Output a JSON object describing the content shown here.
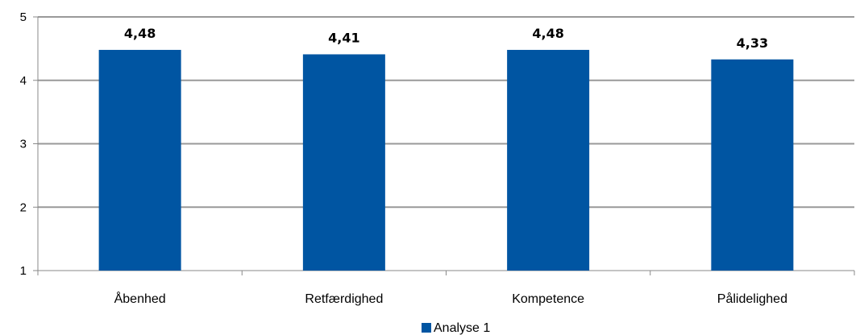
{
  "chart_data": {
    "type": "bar",
    "categories": [
      "Åbenhed",
      "Retfærdighed",
      "Kompetence",
      "Pålidelighed"
    ],
    "series": [
      {
        "name": "Analyse 1",
        "values": [
          4.48,
          4.41,
          4.48,
          4.33
        ],
        "color": "#0055A2"
      }
    ],
    "data_labels": [
      "4,48",
      "4,41",
      "4,48",
      "4,33"
    ],
    "y_ticks": [
      "1",
      "2",
      "3",
      "4",
      "5"
    ],
    "ylim": [
      1,
      5
    ],
    "grid": true,
    "legend": "bottom",
    "grid_color": "#999999",
    "axis_color": "#888888"
  }
}
